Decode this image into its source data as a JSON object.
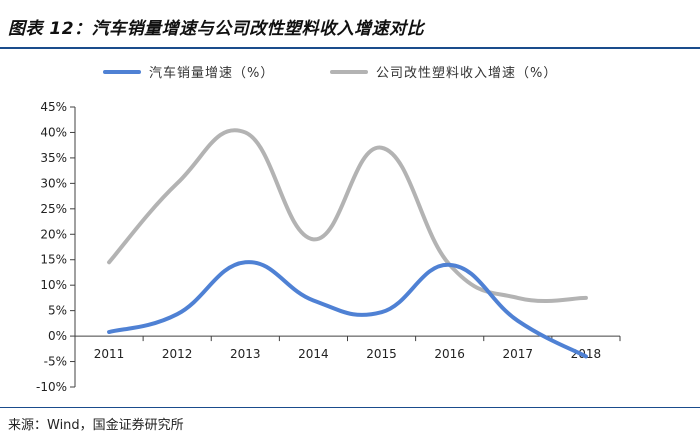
{
  "figure": {
    "title": "图表 12：汽车销量增速与公司改性塑料收入增速对比",
    "source": "来源：Wind，国金证券研究所"
  },
  "colors": {
    "title_rule": "#1a4c8c",
    "series_auto": "#4f81d4",
    "series_plastic": "#b3b3b3",
    "axis": "#404040"
  },
  "chart_data": {
    "type": "line",
    "categories": [
      "2011",
      "2012",
      "2013",
      "2014",
      "2015",
      "2016",
      "2017",
      "2018"
    ],
    "series": [
      {
        "name": "汽车销量增速（%）",
        "values": [
          0.8,
          4.3,
          14.5,
          7.0,
          4.7,
          14.0,
          3.0,
          -4.0
        ]
      },
      {
        "name": "公司改性塑料收入增速（%）",
        "values": [
          14.5,
          30.0,
          40.0,
          19.0,
          37.0,
          14.0,
          7.5,
          7.5
        ]
      }
    ],
    "smooth": true,
    "yticks": [
      "-10%",
      "-5%",
      "0%",
      "5%",
      "10%",
      "15%",
      "20%",
      "25%",
      "30%",
      "35%",
      "40%",
      "45%"
    ],
    "ylim": [
      -10,
      45
    ],
    "legend_position": "top",
    "grid": false
  }
}
